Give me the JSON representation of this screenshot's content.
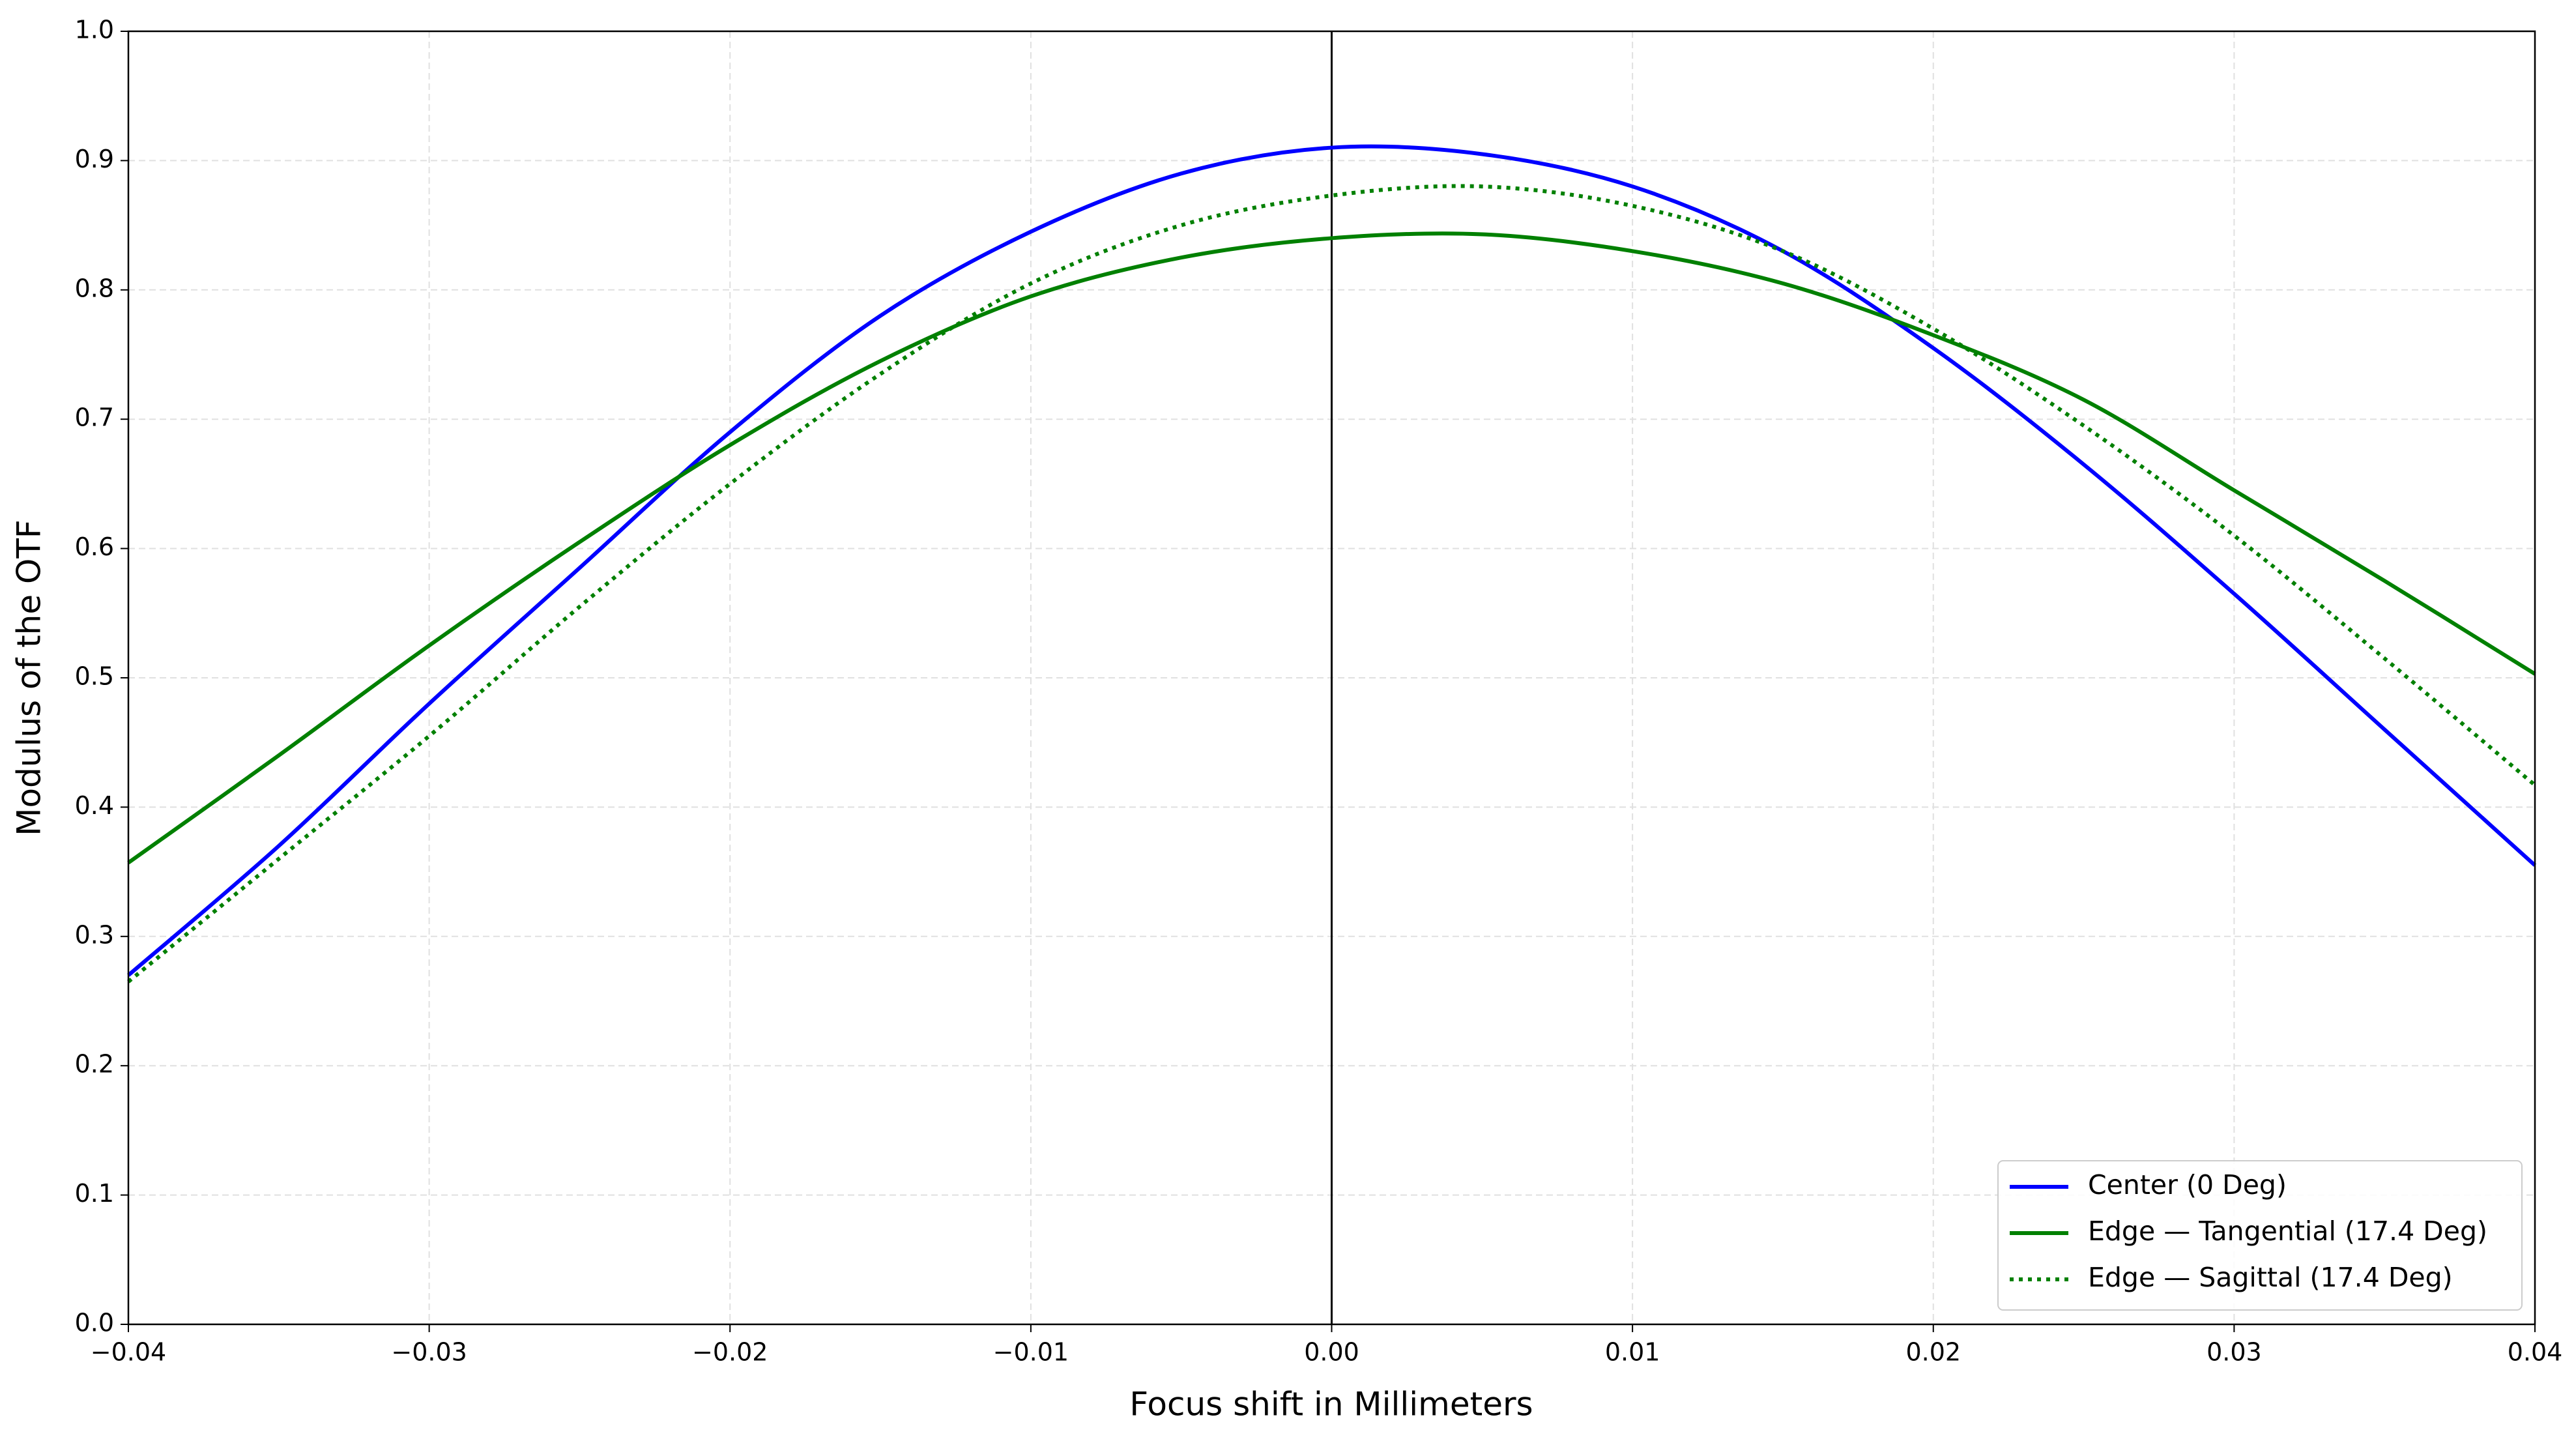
{
  "chart_data": {
    "type": "line",
    "xlabel": "Focus shift in Millimeters",
    "ylabel": "Modulus of the OTF",
    "x": [
      -0.04,
      -0.035,
      -0.03,
      -0.025,
      -0.02,
      -0.015,
      -0.01,
      -0.005,
      0,
      0.005,
      0.01,
      0.015,
      0.02,
      0.025,
      0.03,
      0.035,
      0.04
    ],
    "series": [
      {
        "name": "Center (0 Deg)",
        "color": "#0000ff",
        "dash": "solid",
        "values": [
          0.27,
          0.37,
          0.48,
          0.585,
          0.69,
          0.78,
          0.845,
          0.89,
          0.91,
          0.905,
          0.88,
          0.83,
          0.755,
          0.665,
          0.565,
          0.46,
          0.355
        ]
      },
      {
        "name": "Edge — Tangential (17.4 Deg)",
        "color": "#008000",
        "dash": "solid",
        "values": [
          0.357,
          0.44,
          0.525,
          0.605,
          0.68,
          0.745,
          0.795,
          0.825,
          0.84,
          0.843,
          0.83,
          0.805,
          0.765,
          0.715,
          0.645,
          0.575,
          0.503
        ]
      },
      {
        "name": "Edge — Sagittal (17.4 Deg)",
        "color": "#008000",
        "dash": "dotted",
        "values": [
          0.265,
          0.36,
          0.455,
          0.555,
          0.65,
          0.735,
          0.805,
          0.85,
          0.873,
          0.88,
          0.865,
          0.83,
          0.77,
          0.695,
          0.61,
          0.515,
          0.417
        ]
      }
    ],
    "xlim": [
      -0.04,
      0.04
    ],
    "xticks": [
      {
        "value": -0.04,
        "label": "−0.04"
      },
      {
        "value": -0.03,
        "label": "−0.03"
      },
      {
        "value": -0.02,
        "label": "−0.02"
      },
      {
        "value": -0.01,
        "label": "−0.01"
      },
      {
        "value": 0,
        "label": "0.00"
      },
      {
        "value": 0.01,
        "label": "0.01"
      },
      {
        "value": 0.02,
        "label": "0.02"
      },
      {
        "value": 0.03,
        "label": "0.03"
      },
      {
        "value": 0.04,
        "label": "0.04"
      }
    ],
    "ylim": [
      0,
      1
    ],
    "yticks": [
      {
        "value": 0,
        "label": "0.0"
      },
      0.1,
      0.2,
      0.3,
      0.4,
      0.5,
      0.6,
      0.7,
      0.8,
      0.9,
      {
        "value": 1,
        "label": "1.0"
      }
    ],
    "vline_x": 0,
    "grid": true,
    "legend_position": "lower-right"
  }
}
